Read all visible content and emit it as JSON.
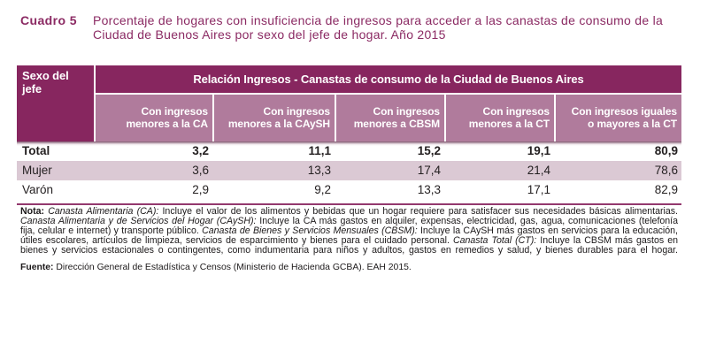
{
  "title": {
    "label": "Cuadro 5",
    "lines": [
      "Porcentaje de hogares con insuficiencia de ingresos para acceder a las canastas de consumo de la",
      "Ciudad de Buenos Aires por sexo del jefe de hogar. Año 2015"
    ]
  },
  "table": {
    "corner_lines": [
      "Sexo del",
      "jefe"
    ],
    "group_header": "Relación Ingresos - Canastas de consumo de la Ciudad de Buenos Aires",
    "columns": [
      {
        "lines": [
          "Con ingresos",
          "menores a la CA"
        ]
      },
      {
        "lines": [
          "Con ingresos",
          "menores a la CAySH"
        ]
      },
      {
        "lines": [
          "Con ingresos",
          "menores a CBSM"
        ]
      },
      {
        "lines": [
          "Con ingresos",
          "menores a la CT"
        ]
      },
      {
        "lines": [
          "Con ingresos iguales",
          "o mayores a la CT"
        ]
      }
    ],
    "rows": [
      {
        "label": "Total",
        "values": [
          "3,2",
          "11,1",
          "15,2",
          "19,1",
          "80,9"
        ]
      },
      {
        "label": "Mujer",
        "values": [
          "3,6",
          "13,3",
          "17,4",
          "21,4",
          "78,6"
        ]
      },
      {
        "label": "Varón",
        "values": [
          "2,9",
          "9,2",
          "13,3",
          "17,1",
          "82,9"
        ]
      }
    ]
  },
  "note": {
    "lines": [
      [
        {
          "t": "Nota: ",
          "s": "b"
        },
        {
          "t": "Canasta Alimentaria (CA):",
          "s": "i"
        },
        {
          "t": " Incluye el valor de los alimentos y bebidas que un hogar requiere para satisfacer sus necesidades básicas alimentarias.",
          "s": ""
        }
      ],
      [
        {
          "t": "Canasta Alimentaria y de Servicios del Hogar (CAySH):",
          "s": "i"
        },
        {
          "t": " Incluye la CA más gastos en alquiler, expensas, electricidad, gas, agua, comunicaciones (telefonía",
          "s": ""
        }
      ],
      [
        {
          "t": "fija, celular e internet) y transporte público. ",
          "s": ""
        },
        {
          "t": "Canasta de Bienes y Servicios Mensuales (CBSM):",
          "s": "i"
        },
        {
          "t": " Incluye la CAySH más gastos en servicios para la educación,",
          "s": ""
        }
      ],
      [
        {
          "t": "útiles escolares, artículos de limpieza, servicios de esparcimiento y bienes para el cuidado personal. ",
          "s": ""
        },
        {
          "t": "Canasta Total (CT):",
          "s": "i"
        },
        {
          "t": " Incluye la CBSM más gastos en",
          "s": ""
        }
      ],
      [
        {
          "t": "bienes y servicios estacionales o contingentes, como indumentaria para niños y adultos, gastos en remedios y salud, y bienes durables para el hogar.",
          "s": ""
        }
      ]
    ]
  },
  "source": {
    "label": "Fuente: ",
    "text": "Dirección General de Estadística y Censos (Ministerio de Hacienda GCBA). EAH 2015."
  },
  "colors": {
    "header_dark": "#87265f",
    "header_light": "#b07b9c",
    "row_highlight": "#dbc9d4",
    "bottom_rule": "#8e2f68",
    "title_text": "#8b2a63"
  },
  "chart_data": {
    "type": "table",
    "title": "Cuadro 5. Porcentaje de hogares con insuficiencia de ingresos para acceder a las canastas de consumo de la Ciudad de Buenos Aires por sexo del jefe de hogar. Año 2015",
    "row_header": "Sexo del jefe",
    "column_group": "Relación Ingresos - Canastas de consumo de la Ciudad de Buenos Aires",
    "columns": [
      "Con ingresos menores a la CA",
      "Con ingresos menores a la CAySH",
      "Con ingresos menores a CBSM",
      "Con ingresos menores a la CT",
      "Con ingresos iguales o mayores a la CT"
    ],
    "categories": [
      "Total",
      "Mujer",
      "Varón"
    ],
    "series": [
      {
        "name": "Total",
        "values": [
          3.2,
          11.1,
          15.2,
          19.1,
          80.9
        ]
      },
      {
        "name": "Mujer",
        "values": [
          3.6,
          13.3,
          17.4,
          21.4,
          78.6
        ]
      },
      {
        "name": "Varón",
        "values": [
          2.9,
          9.2,
          13.3,
          17.1,
          82.9
        ]
      }
    ],
    "units": "percent",
    "source": "Dirección General de Estadística y Censos (Ministerio de Hacienda GCBA). EAH 2015."
  }
}
